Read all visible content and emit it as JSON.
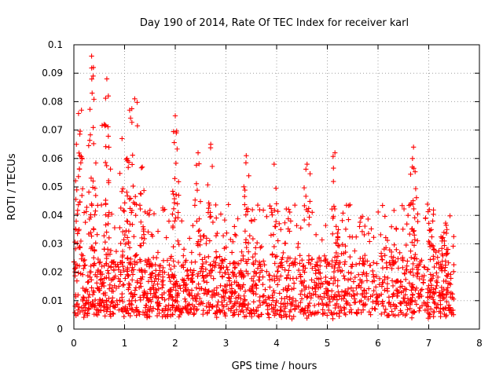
{
  "chart_data": {
    "type": "scatter",
    "title": "Day 190 of 2014, Rate Of TEC Index for receiver karl",
    "xlabel": "GPS time / hours",
    "ylabel": "ROTI / TECUs",
    "xlim": [
      0,
      8
    ],
    "ylim": [
      0,
      0.1
    ],
    "xticks": [
      "0",
      "1",
      "2",
      "3",
      "4",
      "5",
      "6",
      "7",
      "8"
    ],
    "yticks": [
      "0",
      "0.01",
      "0.02",
      "0.03",
      "0.04",
      "0.05",
      "0.06",
      "0.07",
      "0.08",
      "0.09",
      "0.1"
    ],
    "grid": true,
    "marker": "plus",
    "color": "#ff0000",
    "series": [
      {
        "name": "ROTI",
        "x_range": [
          0,
          7.5
        ],
        "baseline_band": [
          0.005,
          0.025
        ],
        "notable_points": [
          {
            "x": 0.05,
            "y": 0.065
          },
          {
            "x": 0.12,
            "y": 0.061
          },
          {
            "x": 0.15,
            "y": 0.077
          },
          {
            "x": 0.35,
            "y": 0.096
          },
          {
            "x": 0.38,
            "y": 0.089
          },
          {
            "x": 0.36,
            "y": 0.083
          },
          {
            "x": 0.65,
            "y": 0.088
          },
          {
            "x": 0.68,
            "y": 0.082
          },
          {
            "x": 0.6,
            "y": 0.072
          },
          {
            "x": 0.95,
            "y": 0.067
          },
          {
            "x": 1.1,
            "y": 0.077
          },
          {
            "x": 1.2,
            "y": 0.081
          },
          {
            "x": 1.05,
            "y": 0.06
          },
          {
            "x": 1.35,
            "y": 0.057
          },
          {
            "x": 2.0,
            "y": 0.075
          },
          {
            "x": 2.02,
            "y": 0.069
          },
          {
            "x": 2.45,
            "y": 0.062
          },
          {
            "x": 2.7,
            "y": 0.065
          },
          {
            "x": 3.4,
            "y": 0.061
          },
          {
            "x": 3.95,
            "y": 0.058
          },
          {
            "x": 4.6,
            "y": 0.058
          },
          {
            "x": 5.15,
            "y": 0.062
          },
          {
            "x": 6.7,
            "y": 0.064
          },
          {
            "x": 6.68,
            "y": 0.06
          },
          {
            "x": 7.05,
            "y": 0.035
          },
          {
            "x": 7.3,
            "y": 0.034
          }
        ]
      }
    ]
  }
}
